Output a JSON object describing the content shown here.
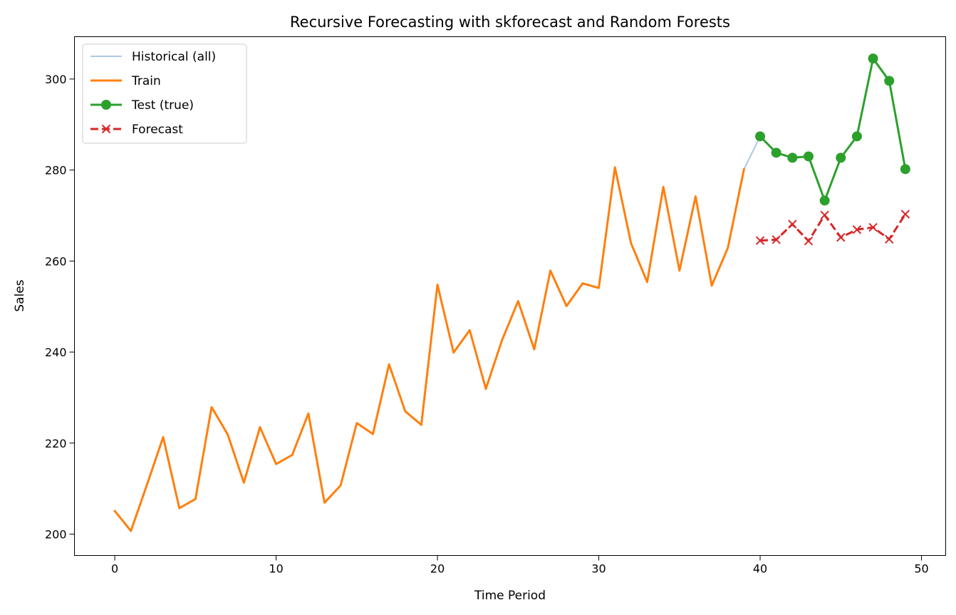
{
  "chart_data": {
    "type": "line",
    "title": "Recursive Forecasting with skforecast and Random Forests",
    "xlabel": "Time Period",
    "ylabel": "Sales",
    "xlim": [
      -2.5,
      51.5
    ],
    "ylim": [
      195.3,
      309.3
    ],
    "xticks": [
      0,
      10,
      20,
      30,
      40,
      50
    ],
    "yticks": [
      200,
      220,
      240,
      260,
      280,
      300
    ],
    "grid": false,
    "legend_position": "top-left",
    "series": [
      {
        "name": "Historical (all)",
        "color": "#aec7e8",
        "style": "line",
        "x": [
          39,
          40
        ],
        "y": [
          280.2,
          287.4
        ]
      },
      {
        "name": "Train",
        "color": "#ff7f0e",
        "style": "line",
        "x": [
          0,
          1,
          2,
          3,
          4,
          5,
          6,
          7,
          8,
          9,
          10,
          11,
          12,
          13,
          14,
          15,
          16,
          17,
          18,
          19,
          20,
          21,
          22,
          23,
          24,
          25,
          26,
          27,
          28,
          29,
          30,
          31,
          32,
          33,
          34,
          35,
          36,
          37,
          38,
          39
        ],
        "y": [
          205.1,
          200.7,
          210.9,
          221.3,
          205.7,
          207.7,
          227.9,
          221.9,
          211.3,
          223.5,
          215.4,
          217.4,
          226.5,
          206.9,
          210.7,
          224.4,
          222.0,
          237.3,
          227.0,
          224.0,
          254.8,
          239.9,
          244.8,
          231.9,
          242.6,
          251.2,
          240.6,
          257.9,
          250.1,
          255.1,
          254.1,
          280.6,
          263.9,
          255.4,
          276.3,
          257.9,
          274.2,
          254.6,
          262.9,
          280.2
        ]
      },
      {
        "name": "Test (true)",
        "color": "#2ca02c",
        "style": "line-marker-circle",
        "x": [
          40,
          41,
          42,
          43,
          44,
          45,
          46,
          47,
          48,
          49
        ],
        "y": [
          287.4,
          283.8,
          282.7,
          283.0,
          273.3,
          282.7,
          287.4,
          304.5,
          299.6,
          280.2
        ]
      },
      {
        "name": "Forecast",
        "color": "#d62728",
        "style": "dashed-marker-x",
        "x": [
          40,
          41,
          42,
          43,
          44,
          45,
          46,
          47,
          48,
          49
        ],
        "y": [
          264.5,
          264.7,
          268.1,
          264.4,
          270.1,
          265.2,
          266.9,
          267.4,
          264.8,
          270.3
        ]
      }
    ]
  }
}
